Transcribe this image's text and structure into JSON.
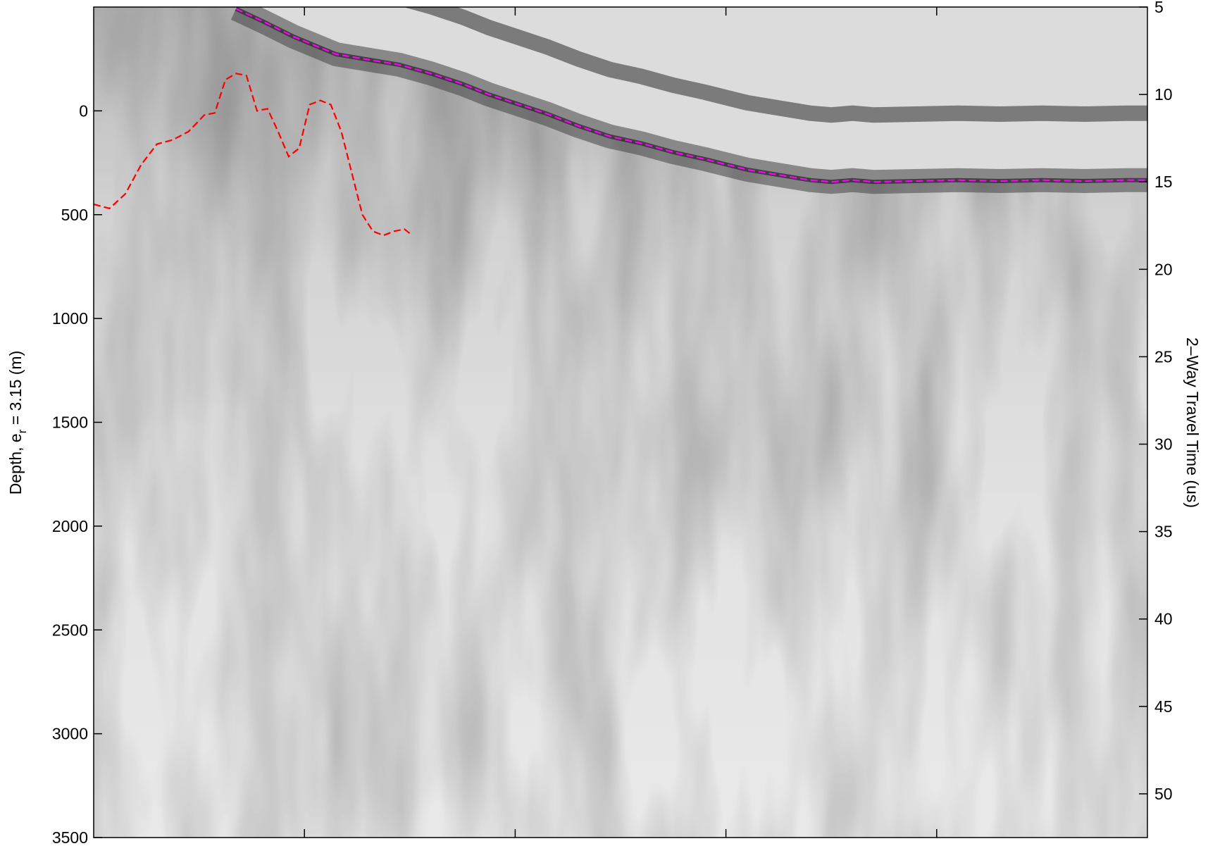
{
  "chart_data": {
    "type": "heatmap",
    "title": "",
    "xlabel": "",
    "colormap": "grayscale",
    "left_axis": {
      "label_prefix": "Depth, e",
      "label_sub": "r",
      "label_suffix": " = 3.15 (m)",
      "range": [
        -500,
        3500
      ],
      "reversed": true,
      "ticks": [
        "0",
        "500",
        "1000",
        "1500",
        "2000",
        "2500",
        "3000",
        "3500"
      ]
    },
    "right_axis": {
      "label": "2–Way Travel Time (us)",
      "range": [
        5,
        52.5
      ],
      "reversed": true,
      "ticks": [
        "5",
        "10",
        "15",
        "20",
        "25",
        "30",
        "35",
        "40",
        "45",
        "50"
      ]
    },
    "x_ticks_count": 4,
    "traces": [
      {
        "name": "",
        "color": "#ff00ff",
        "style": "dashed",
        "note_units": "x in fraction of track, y in two-way travel time (us)",
        "x": [
          0.135,
          0.16,
          0.19,
          0.21,
          0.23,
          0.26,
          0.29,
          0.32,
          0.35,
          0.375,
          0.4,
          0.43,
          0.46,
          0.49,
          0.52,
          0.55,
          0.58,
          0.6,
          0.62,
          0.65,
          0.68,
          0.7,
          0.71,
          0.72,
          0.74,
          0.78,
          0.82,
          0.86,
          0.9,
          0.94,
          0.98,
          1.0
        ],
        "y": [
          5.1,
          5.8,
          6.7,
          7.2,
          7.7,
          8.0,
          8.3,
          8.8,
          9.4,
          10.0,
          10.5,
          11.1,
          11.8,
          12.4,
          12.8,
          13.3,
          13.7,
          14.0,
          14.3,
          14.6,
          14.9,
          15.0,
          14.95,
          14.9,
          15.0,
          14.95,
          14.9,
          14.95,
          14.9,
          14.95,
          14.9,
          14.9
        ]
      },
      {
        "name": "",
        "color": "#ff0000",
        "style": "dashed",
        "note_units": "x in fraction of track, y in depth (m)",
        "x": [
          0.0,
          0.015,
          0.03,
          0.045,
          0.06,
          0.075,
          0.09,
          0.105,
          0.115,
          0.125,
          0.135,
          0.145,
          0.155,
          0.165,
          0.175,
          0.185,
          0.195,
          0.205,
          0.215,
          0.225,
          0.235,
          0.245,
          0.255,
          0.265,
          0.275,
          0.285,
          0.295,
          0.3
        ],
        "y": [
          450,
          470,
          400,
          260,
          160,
          140,
          100,
          20,
          10,
          -150,
          -180,
          -170,
          0,
          -10,
          100,
          220,
          180,
          -30,
          -50,
          -30,
          100,
          300,
          500,
          580,
          600,
          580,
          570,
          590
        ]
      }
    ]
  }
}
